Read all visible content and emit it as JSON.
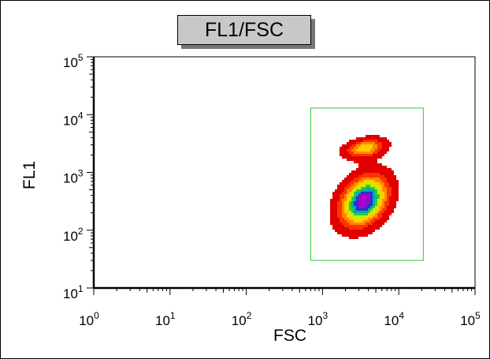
{
  "chart_data": {
    "type": "heatmap",
    "title": "FL1/FSC",
    "xlabel": "FSC",
    "ylabel": "FL1",
    "x_scale": "log",
    "y_scale": "log",
    "xlim": [
      1,
      100000
    ],
    "ylim": [
      10,
      100000
    ],
    "x_tick_labels": [
      {
        "base": "10",
        "exp": "0"
      },
      {
        "base": "10",
        "exp": "1"
      },
      {
        "base": "10",
        "exp": "2"
      },
      {
        "base": "10",
        "exp": "3"
      },
      {
        "base": "10",
        "exp": "4"
      },
      {
        "base": "10",
        "exp": "5"
      }
    ],
    "y_tick_labels": [
      {
        "base": "10",
        "exp": "1"
      },
      {
        "base": "10",
        "exp": "2"
      },
      {
        "base": "10",
        "exp": "3"
      },
      {
        "base": "10",
        "exp": "4"
      },
      {
        "base": "10",
        "exp": "5"
      }
    ],
    "gate": {
      "x": [
        700,
        21000
      ],
      "y": [
        30,
        13000
      ],
      "color": "#33cc33"
    },
    "density_populations": [
      {
        "center": [
          3500,
          320
        ],
        "spread_x_decades": 0.2,
        "spread_y_decades": 0.28,
        "weight": 1.0
      },
      {
        "center": [
          3600,
          2600
        ],
        "spread_x_decades": 0.17,
        "spread_y_decades": 0.11,
        "weight": 0.55
      }
    ],
    "colormap": [
      "#e00000",
      "#ff3300",
      "#ff8800",
      "#ffcc00",
      "#ccee00",
      "#33cc33",
      "#00aaaa",
      "#2233cc",
      "#aa00cc"
    ],
    "grid": false
  }
}
